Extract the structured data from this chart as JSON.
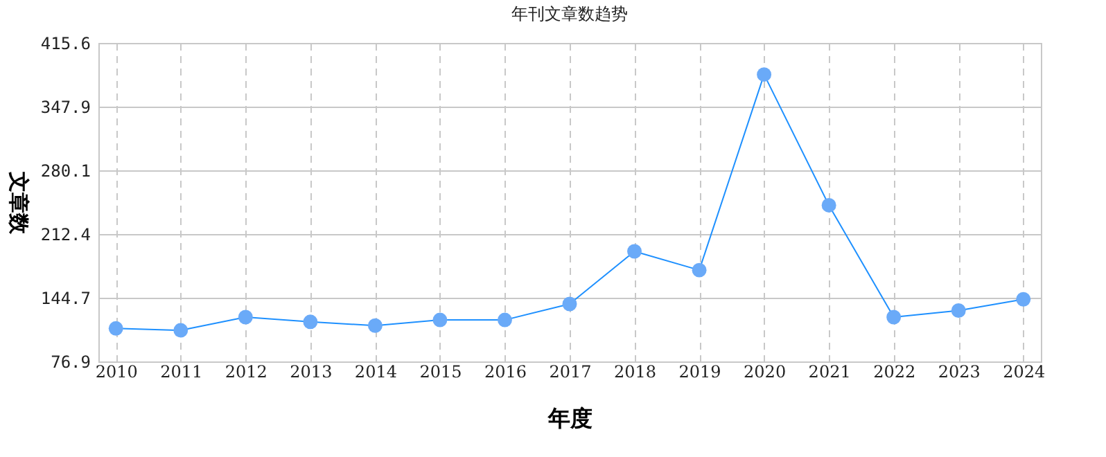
{
  "chart_data": {
    "type": "line",
    "title": "年刊文章数趋势",
    "xlabel": "年度",
    "ylabel": "文章数",
    "categories": [
      "2010",
      "2011",
      "2012",
      "2013",
      "2014",
      "2015",
      "2016",
      "2017",
      "2018",
      "2019",
      "2020",
      "2021",
      "2022",
      "2023",
      "2024"
    ],
    "series": [
      {
        "color": "#1e90ff",
        "values": [
          112,
          110,
          124,
          119,
          115,
          121,
          121,
          138,
          194,
          174,
          382,
          243,
          124,
          131,
          143
        ]
      }
    ],
    "ylim": [
      76.9,
      415.6
    ],
    "yticks": [
      76.9,
      144.7,
      212.4,
      280.1,
      347.9,
      415.6
    ],
    "grid": true,
    "marker": "circle",
    "line_style": "solid"
  }
}
